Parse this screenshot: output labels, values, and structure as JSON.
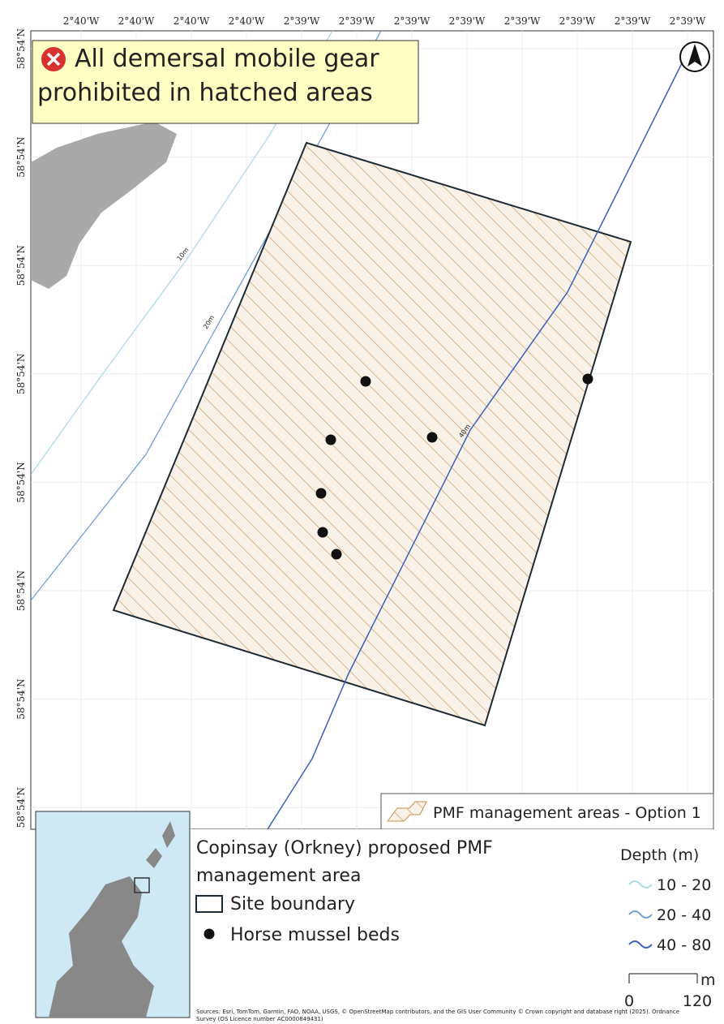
{
  "map": {
    "top_labels": [
      "2°40'W",
      "2°40'W",
      "2°40'W",
      "2°40'W",
      "2°39'W",
      "2°39'W",
      "2°39'W",
      "2°39'W",
      "2°39'W",
      "2°39'W",
      "2°39'W",
      "2°39'W"
    ],
    "left_labels": [
      "58°54'N",
      "58°54'N",
      "58°54'N",
      "58°54'N",
      "58°54'N",
      "58°54'N",
      "58°54'N",
      "58°54'N"
    ],
    "contour_labels": [
      "10m",
      "20m",
      "40m"
    ]
  },
  "banner": {
    "lines": [
      "All demersal mobile gear",
      "prohibited in hatched areas"
    ]
  },
  "legend": {
    "pmf": "PMF management areas - Option 1",
    "title_lines": [
      "Copinsay (Orkney) proposed PMF",
      "management area"
    ],
    "site_boundary": "Site boundary",
    "mussel": "Horse mussel beds",
    "depth_title": "Depth (m)",
    "depth_items": [
      "10 - 20",
      "20 - 40",
      "40 - 80"
    ],
    "scale_unit": "m",
    "scale_start": "0",
    "scale_end": "120",
    "source_lines": [
      "Sources: Esri, TomTom, Garmin, FAO, NOAA, USGS, © OpenStreetMap contributors, and the GIS User Community © Crown copyright and database right (2025). Ordnance",
      "Survey (OS Licence number AC0000849431)"
    ]
  }
}
